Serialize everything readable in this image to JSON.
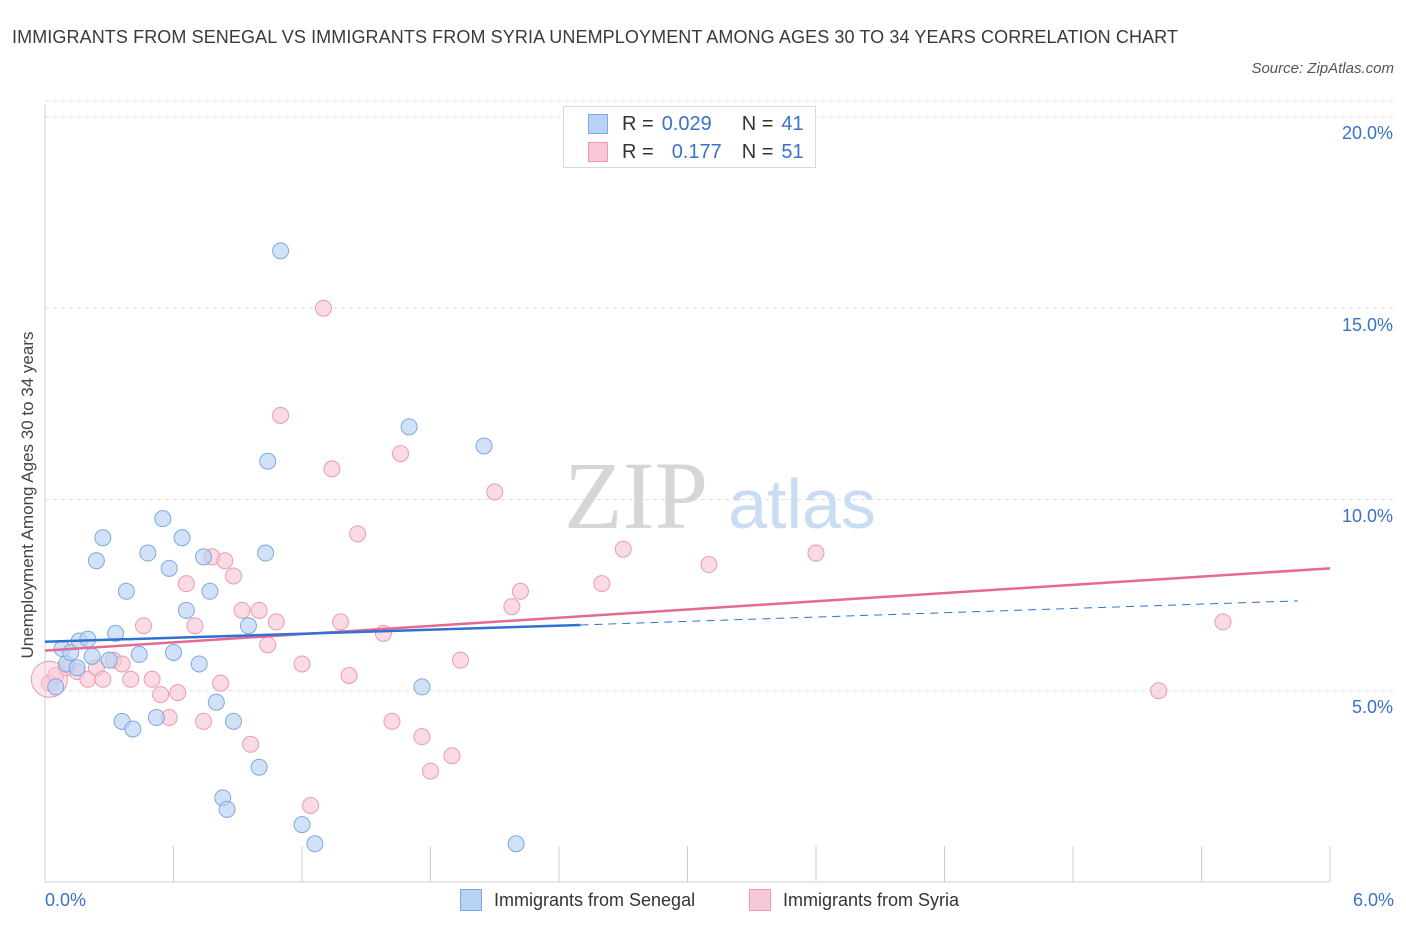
{
  "title": "IMMIGRANTS FROM SENEGAL VS IMMIGRANTS FROM SYRIA UNEMPLOYMENT AMONG AGES 30 TO 34 YEARS CORRELATION CHART",
  "source": "Source: ZipAtlas.com",
  "watermark": {
    "zip": "ZIP",
    "atlas": "atlas"
  },
  "legend": {
    "senegal": {
      "r_label": "R =",
      "r_value": "0.029",
      "n_label": "N =",
      "n_value": "41"
    },
    "syria": {
      "r_label": "R =",
      "r_value": "0.177",
      "n_label": "N =",
      "n_value": "51"
    }
  },
  "bottom_legend": {
    "senegal": "Immigrants from Senegal",
    "syria": "Immigrants from Syria"
  },
  "x_tick_labels": {
    "min": "0.0%",
    "max": "6.0%"
  },
  "y_tick_labels": [
    "20.0%",
    "15.0%",
    "10.0%",
    "5.0%"
  ],
  "colors": {
    "senegal_fill": "#b8d3f5",
    "senegal_stroke": "#7ea8e0",
    "senegal_line": "#2f72d0",
    "syria_fill": "#f8c8d6",
    "syria_stroke": "#eb9ab3",
    "syria_line": "#e46a93",
    "grid": "#dddddd",
    "tick_text": "#3a72c8"
  },
  "chart_data": {
    "type": "scatter",
    "title": "IMMIGRANTS FROM SENEGAL VS IMMIGRANTS FROM SYRIA UNEMPLOYMENT AMONG AGES 30 TO 34 YEARS CORRELATION CHART",
    "xlabel": "",
    "ylabel": "Unemployment Among Ages 30 to 34 years",
    "xlim": [
      0,
      6
    ],
    "ylim": [
      0,
      20
    ],
    "y_ticks": [
      5,
      10,
      15,
      20
    ],
    "grid": true,
    "legend_position": "top-center",
    "series": [
      {
        "name": "Immigrants from Senegal",
        "r": 0.029,
        "n": 41,
        "trend": {
          "x0": 0.0,
          "y0": 6.28,
          "x1": 2.5,
          "y1": 6.72,
          "dashed_to_x": 5.85,
          "dashed_to_y": 7.35
        },
        "points": [
          [
            0.05,
            5.1
          ],
          [
            0.08,
            6.1
          ],
          [
            0.1,
            5.7
          ],
          [
            0.12,
            6.0
          ],
          [
            0.16,
            6.3
          ],
          [
            0.2,
            6.35
          ],
          [
            0.22,
            5.9
          ],
          [
            0.24,
            8.4
          ],
          [
            0.27,
            9.0
          ],
          [
            0.3,
            5.8
          ],
          [
            0.33,
            6.5
          ],
          [
            0.36,
            4.2
          ],
          [
            0.38,
            7.6
          ],
          [
            0.41,
            4.0
          ],
          [
            0.44,
            5.95
          ],
          [
            0.48,
            8.6
          ],
          [
            0.52,
            4.3
          ],
          [
            0.55,
            9.5
          ],
          [
            0.58,
            8.2
          ],
          [
            0.6,
            6.0
          ],
          [
            0.64,
            9.0
          ],
          [
            0.66,
            7.1
          ],
          [
            0.72,
            5.7
          ],
          [
            0.74,
            8.5
          ],
          [
            0.77,
            7.6
          ],
          [
            0.8,
            4.7
          ],
          [
            0.83,
            2.2
          ],
          [
            0.85,
            1.9
          ],
          [
            0.88,
            4.2
          ],
          [
            0.95,
            6.7
          ],
          [
            1.0,
            3.0
          ],
          [
            1.03,
            8.6
          ],
          [
            1.04,
            11.0
          ],
          [
            1.1,
            16.5
          ],
          [
            1.2,
            1.5
          ],
          [
            1.26,
            1.0
          ],
          [
            1.7,
            11.9
          ],
          [
            1.76,
            5.1
          ],
          [
            2.05,
            11.4
          ],
          [
            2.2,
            1.0
          ],
          [
            0.15,
            5.6
          ]
        ]
      },
      {
        "name": "Immigrants from Syria",
        "r": 0.177,
        "n": 51,
        "trend": {
          "x0": 0.0,
          "y0": 6.05,
          "x1": 6.0,
          "y1": 8.2
        },
        "points": [
          [
            0.02,
            5.2
          ],
          [
            0.05,
            5.4
          ],
          [
            0.1,
            5.6
          ],
          [
            0.15,
            5.5
          ],
          [
            0.2,
            5.3
          ],
          [
            0.24,
            5.6
          ],
          [
            0.27,
            5.3
          ],
          [
            0.32,
            5.8
          ],
          [
            0.36,
            5.7
          ],
          [
            0.4,
            5.3
          ],
          [
            0.46,
            6.7
          ],
          [
            0.5,
            5.3
          ],
          [
            0.54,
            4.9
          ],
          [
            0.58,
            4.3
          ],
          [
            0.62,
            4.95
          ],
          [
            0.66,
            7.8
          ],
          [
            0.7,
            6.7
          ],
          [
            0.74,
            4.2
          ],
          [
            0.78,
            8.5
          ],
          [
            0.82,
            5.2
          ],
          [
            0.84,
            8.4
          ],
          [
            0.88,
            8.0
          ],
          [
            0.92,
            7.1
          ],
          [
            0.96,
            3.6
          ],
          [
            1.0,
            7.1
          ],
          [
            1.04,
            6.2
          ],
          [
            1.08,
            6.8
          ],
          [
            1.1,
            12.2
          ],
          [
            1.2,
            5.7
          ],
          [
            1.24,
            2.0
          ],
          [
            1.3,
            15.0
          ],
          [
            1.34,
            10.8
          ],
          [
            1.38,
            6.8
          ],
          [
            1.42,
            5.4
          ],
          [
            1.46,
            9.1
          ],
          [
            1.58,
            6.5
          ],
          [
            1.62,
            4.2
          ],
          [
            1.66,
            11.2
          ],
          [
            1.76,
            3.8
          ],
          [
            1.8,
            2.9
          ],
          [
            1.9,
            3.3
          ],
          [
            1.94,
            5.8
          ],
          [
            2.1,
            10.2
          ],
          [
            2.18,
            7.2
          ],
          [
            2.22,
            7.6
          ],
          [
            2.6,
            7.8
          ],
          [
            2.7,
            8.7
          ],
          [
            3.1,
            8.3
          ],
          [
            3.6,
            8.6
          ],
          [
            5.2,
            5.0
          ],
          [
            5.5,
            6.8
          ]
        ]
      }
    ]
  }
}
